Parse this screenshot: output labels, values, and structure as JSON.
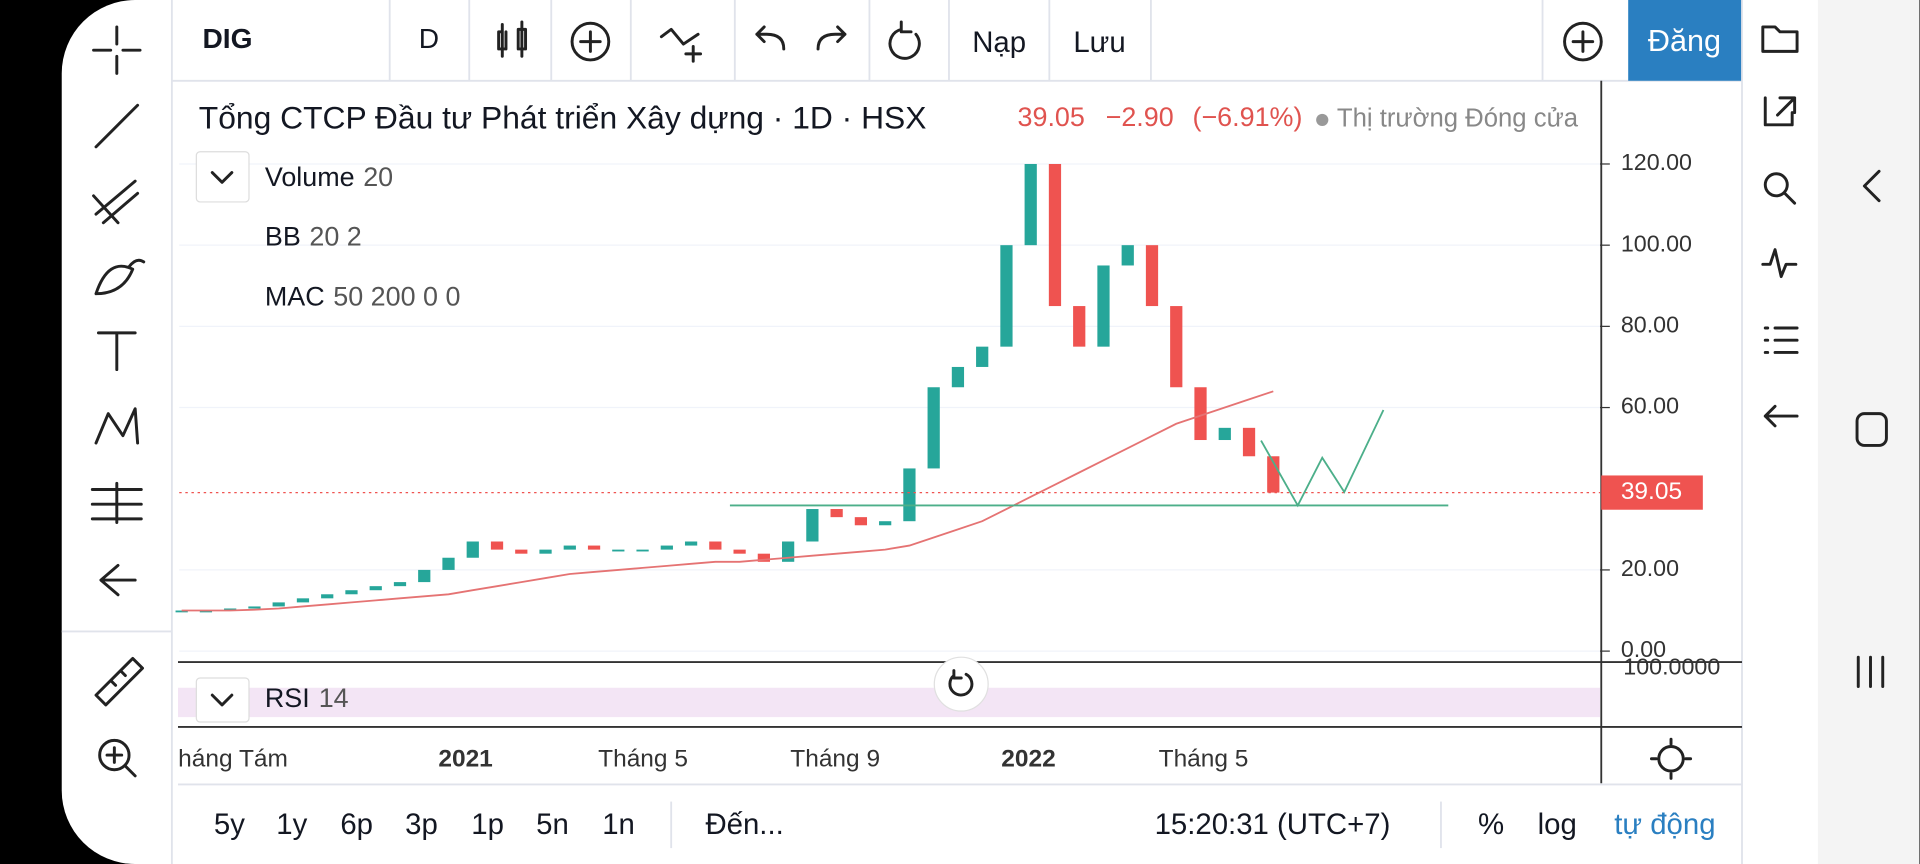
{
  "top_toolbar": {
    "symbol": "DIG",
    "interval": "D",
    "load": "Nạp",
    "save": "Lưu",
    "signup": "Đăng"
  },
  "chart": {
    "title": "Tổng CTCP Đầu tư Phát triển Xây dựng · 1D · HSX",
    "last": "39.05",
    "change": "−2.90",
    "change_pct": "(−6.91%)",
    "market_status": "Thị trường Đóng cửa",
    "indicators": [
      {
        "name": "Volume",
        "params": "20"
      },
      {
        "name": "BB",
        "params": "20 2"
      },
      {
        "name": "MAC",
        "params": "50 200 0 0"
      }
    ],
    "ylim": [
      -2.4,
      140.5
    ],
    "yticks": [
      {
        "value": 0,
        "label": "0.00"
      },
      {
        "value": 20,
        "label": "20.00"
      },
      {
        "value": 60,
        "label": "60.00"
      },
      {
        "value": 80,
        "label": "80.00"
      },
      {
        "value": 100,
        "label": "100.00"
      },
      {
        "value": 120,
        "label": "120.00"
      }
    ],
    "price_line": {
      "value": 39.05,
      "label": "39.05"
    },
    "close": [
      10,
      10,
      10.5,
      11,
      12,
      13,
      14,
      15,
      16,
      17,
      20,
      23,
      27,
      25,
      24,
      25,
      26,
      25,
      25,
      25,
      26,
      27,
      25,
      24,
      22,
      27,
      35,
      33,
      31,
      32,
      45,
      65,
      70,
      75,
      100,
      120,
      85,
      75,
      95,
      100,
      85,
      65,
      52,
      55,
      48,
      39.05
    ],
    "ma200": [
      10,
      10,
      10,
      10.2,
      10.5,
      11,
      11.5,
      12,
      12.5,
      13,
      13.5,
      14,
      15,
      16,
      17,
      18,
      19,
      19.5,
      20,
      20.5,
      21,
      21.5,
      22,
      22,
      22.5,
      23,
      23.5,
      24,
      24.5,
      25,
      26,
      28,
      30,
      32,
      35,
      38,
      41,
      44,
      47,
      50,
      53,
      56,
      58,
      60,
      62,
      64
    ],
    "rsi": {
      "name": "RSI",
      "params": "14",
      "axis_label": "100.0000"
    },
    "time_axis": [
      "háng Tám",
      "2021",
      "Tháng 5",
      "Tháng 9",
      "2022",
      "Tháng 5"
    ]
  },
  "bottom_toolbar": {
    "ranges": [
      "5y",
      "1y",
      "6p",
      "3p",
      "1p",
      "5n",
      "1n"
    ],
    "goto": "Đến...",
    "clock": "15:20:31 (UTC+7)",
    "percent": "%",
    "log": "log",
    "auto": "tự động"
  }
}
